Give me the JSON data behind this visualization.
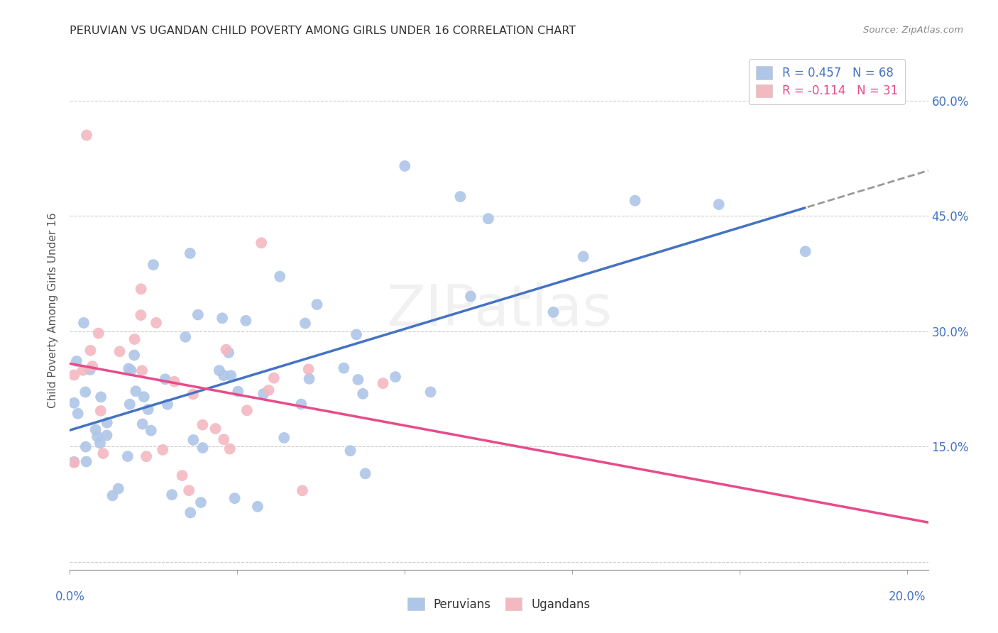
{
  "title": "PERUVIAN VS UGANDAN CHILD POVERTY AMONG GIRLS UNDER 16 CORRELATION CHART",
  "source": "Source: ZipAtlas.com",
  "ylabel": "Child Poverty Among Girls Under 16",
  "xlim": [
    0.0,
    0.205
  ],
  "ylim": [
    -0.01,
    0.665
  ],
  "yticks_right": [
    0.0,
    0.15,
    0.3,
    0.45,
    0.6
  ],
  "ytick_right_labels": [
    "",
    "15.0%",
    "30.0%",
    "45.0%",
    "60.0%"
  ],
  "xtick_vals": [
    0.0,
    0.04,
    0.08,
    0.12,
    0.16,
    0.2
  ],
  "grid_color": "#cccccc",
  "bg_color": "#ffffff",
  "peru_scatter_color": "#aec6e8",
  "uganda_scatter_color": "#f4b8c1",
  "peru_line_color": "#4472c4",
  "uganda_line_color": "#e84b8a",
  "dashed_color": "#999999",
  "legend_text_peru": "R = 0.457   N = 68",
  "legend_text_uganda": "R = -0.114   N = 31",
  "legend_label_peru": "Peruvians",
  "legend_label_uganda": "Ugandans",
  "watermark": "ZIPatlas",
  "title_color": "#333333",
  "source_color": "#888888",
  "axis_text_color": "#4472c4",
  "peru_R": 0.457,
  "uganda_R": -0.114
}
